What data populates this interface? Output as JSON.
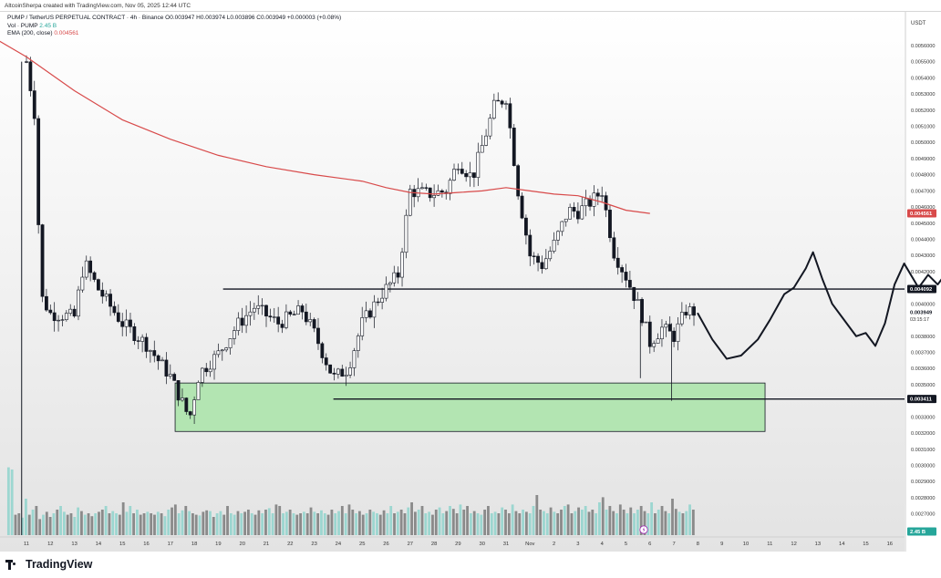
{
  "header": {
    "caption": "AltcoinSherpa created with TradingView.com, Nov 05, 2025 12:44 UTC"
  },
  "legend": {
    "symbol_line": "PUMP / TetherUS PERPETUAL CONTRACT · 4h · Binance",
    "ohlc": "O0.003947 H0.003974 L0.003896 C0.003949 +0.000003 (+0.08%)",
    "vol_label": "Vol · PUMP",
    "vol_value": "2.45 B",
    "ema_label": "EMA (200, close)",
    "ema_value": "0.004561"
  },
  "brand": {
    "name": "TradingView"
  },
  "colors": {
    "up": "#26a69a",
    "down": "#ef5350",
    "ema": "#d84a4a",
    "zone": "#a5e3a4",
    "candle": "#131722"
  },
  "chart_data": {
    "type": "candlestick",
    "currency": "USDT",
    "x_ticks": [
      "11",
      "12",
      "13",
      "14",
      "15",
      "16",
      "17",
      "18",
      "19",
      "20",
      "21",
      "22",
      "23",
      "24",
      "25",
      "26",
      "27",
      "28",
      "29",
      "30",
      "31",
      "Nov",
      "2",
      "3",
      "4",
      "5",
      "6",
      "7",
      "8",
      "9",
      "10",
      "11",
      "12",
      "13",
      "14",
      "15",
      "16"
    ],
    "y_ticks": [
      "0.0056000",
      "0.0055000",
      "0.0054000",
      "0.0053000",
      "0.0052000",
      "0.0051000",
      "0.0050000",
      "0.0049000",
      "0.0048000",
      "0.0047000",
      "0.0046000",
      "0.0045000",
      "0.0044000",
      "0.0043000",
      "0.0042000",
      "0.0041000",
      "0.0040000",
      "0.0039000",
      "0.0038000",
      "0.0037000",
      "0.0036000",
      "0.0035000",
      "0.0034000",
      "0.0033000",
      "0.0032000",
      "0.0031000",
      "0.0030000",
      "0.0029000",
      "0.0028000",
      "0.0027000"
    ],
    "ylim": [
      0.00263,
      0.00569
    ],
    "price_labels": [
      {
        "value": "0.004561",
        "kind": "ema"
      },
      {
        "value": "0.004092",
        "kind": "level"
      },
      {
        "value": "0.003949",
        "kind": "last",
        "countdown": "03:15:17"
      },
      {
        "value": "0.003411",
        "kind": "level"
      },
      {
        "value": "2.45 B",
        "kind": "volume"
      }
    ],
    "horizontal_levels": [
      {
        "price": 0.004092,
        "from_day": 8.2
      },
      {
        "price": 0.003411,
        "from_day": 12.8
      }
    ],
    "demand_zone": {
      "price_low": 0.00321,
      "price_high": 0.00351,
      "from_day": 6.2,
      "to_day": 30.8
    },
    "ema200": [
      [
        -1.5,
        0.00566
      ],
      [
        0,
        0.00553
      ],
      [
        2,
        0.00532
      ],
      [
        4,
        0.00514
      ],
      [
        6,
        0.00502
      ],
      [
        8,
        0.00492
      ],
      [
        10,
        0.00485
      ],
      [
        12,
        0.0048
      ],
      [
        14,
        0.00476
      ],
      [
        15,
        0.00472
      ],
      [
        16,
        0.00469
      ],
      [
        17,
        0.00468
      ],
      [
        18,
        0.00469
      ],
      [
        19,
        0.0047
      ],
      [
        20,
        0.00472
      ],
      [
        21,
        0.0047
      ],
      [
        22,
        0.00468
      ],
      [
        23,
        0.00467
      ],
      [
        24,
        0.00463
      ],
      [
        25,
        0.00458
      ],
      [
        26,
        0.00456
      ]
    ],
    "anchors_close": [
      [
        0,
        0.0055
      ],
      [
        0.35,
        0.00517
      ],
      [
        0.6,
        0.00405
      ],
      [
        1,
        0.00394
      ],
      [
        2,
        0.00392
      ],
      [
        2.4,
        0.00426
      ],
      [
        3,
        0.00409
      ],
      [
        4,
        0.00388
      ],
      [
        5,
        0.00375
      ],
      [
        6,
        0.00355
      ],
      [
        6.8,
        0.00329
      ],
      [
        7.2,
        0.00357
      ],
      [
        8,
        0.00369
      ],
      [
        8.8,
        0.00387
      ],
      [
        9.5,
        0.00398
      ],
      [
        10.5,
        0.00388
      ],
      [
        11.5,
        0.00396
      ],
      [
        12,
        0.00382
      ],
      [
        12.8,
        0.00354
      ],
      [
        13.4,
        0.0036
      ],
      [
        14,
        0.00388
      ],
      [
        14.8,
        0.00406
      ],
      [
        15.5,
        0.00418
      ],
      [
        16,
        0.0047
      ],
      [
        16.8,
        0.00468
      ],
      [
        17.5,
        0.0047
      ],
      [
        18,
        0.00488
      ],
      [
        18.6,
        0.00478
      ],
      [
        19.5,
        0.00522
      ],
      [
        20,
        0.00528
      ],
      [
        20.5,
        0.0047
      ],
      [
        21,
        0.0043
      ],
      [
        21.5,
        0.00424
      ],
      [
        22,
        0.00437
      ],
      [
        22.6,
        0.00458
      ],
      [
        23,
        0.00457
      ],
      [
        23.6,
        0.00464
      ],
      [
        24,
        0.0047
      ],
      [
        24.5,
        0.00432
      ],
      [
        25,
        0.00417
      ],
      [
        25.6,
        0.00396
      ],
      [
        26,
        0.00376
      ],
      [
        26.5,
        0.00385
      ],
      [
        27,
        0.0038
      ],
      [
        27.5,
        0.00396
      ],
      [
        27.9,
        0.00395
      ]
    ],
    "volume_bars": [
      0.93,
      0.9,
      0.28,
      0.3,
      0.24,
      0.5,
      0.28,
      0.35,
      0.4,
      0.22,
      0.28,
      0.32,
      0.25,
      0.3,
      0.35,
      0.4,
      0.32,
      0.28,
      0.3,
      0.25,
      0.38,
      0.33,
      0.28,
      0.3,
      0.26,
      0.3,
      0.32,
      0.35,
      0.4,
      0.3,
      0.33,
      0.3,
      0.28,
      0.45,
      0.32,
      0.4,
      0.3,
      0.35,
      0.28,
      0.3,
      0.32,
      0.3,
      0.28,
      0.32,
      0.3,
      0.26,
      0.35,
      0.38,
      0.42,
      0.3,
      0.34,
      0.4,
      0.33,
      0.3,
      0.28,
      0.27,
      0.32,
      0.34,
      0.33,
      0.25,
      0.3,
      0.33,
      0.28,
      0.4,
      0.3,
      0.28,
      0.33,
      0.3,
      0.32,
      0.35,
      0.3,
      0.28,
      0.34,
      0.3,
      0.35,
      0.37,
      0.3,
      0.42,
      0.4,
      0.3,
      0.32,
      0.35,
      0.3,
      0.28,
      0.3,
      0.32,
      0.3,
      0.38,
      0.32,
      0.3,
      0.34,
      0.3,
      0.28,
      0.35,
      0.3,
      0.33,
      0.4,
      0.3,
      0.42,
      0.35,
      0.3,
      0.33,
      0.28,
      0.3,
      0.35,
      0.32,
      0.3,
      0.28,
      0.34,
      0.3,
      0.4,
      0.3,
      0.32,
      0.35,
      0.3,
      0.38,
      0.45,
      0.32,
      0.35,
      0.4,
      0.3,
      0.32,
      0.28,
      0.35,
      0.38,
      0.3,
      0.33,
      0.4,
      0.36,
      0.3,
      0.42,
      0.35,
      0.4,
      0.3,
      0.33,
      0.3,
      0.28,
      0.35,
      0.4,
      0.3,
      0.32,
      0.3,
      0.38,
      0.35,
      0.3,
      0.42,
      0.33,
      0.3,
      0.35,
      0.32,
      0.3,
      0.4,
      0.55,
      0.35,
      0.33,
      0.3,
      0.38,
      0.32,
      0.3,
      0.35,
      0.4,
      0.42,
      0.3,
      0.33,
      0.38,
      0.35,
      0.4,
      0.32,
      0.35,
      0.3,
      0.45,
      0.52,
      0.35,
      0.4,
      0.33,
      0.3,
      0.42,
      0.35,
      0.3,
      0.38,
      0.3,
      0.35,
      0.4,
      0.33,
      0.3,
      0.45,
      0.3,
      0.35,
      0.4,
      0.33,
      0.3,
      0.5,
      0.36,
      0.32,
      0.3,
      0.33,
      0.42,
      0.35
    ],
    "projection_path": [
      [
        28,
        0.00394
      ],
      [
        28.6,
        0.00378
      ],
      [
        29.2,
        0.00366
      ],
      [
        29.8,
        0.00368
      ],
      [
        30.5,
        0.00378
      ],
      [
        31,
        0.0039
      ],
      [
        31.6,
        0.00406
      ],
      [
        32,
        0.0041
      ],
      [
        32.5,
        0.00422
      ],
      [
        32.8,
        0.00432
      ],
      [
        33.2,
        0.00415
      ],
      [
        33.6,
        0.004
      ],
      [
        34,
        0.00392
      ],
      [
        34.6,
        0.0038
      ],
      [
        35,
        0.00382
      ],
      [
        35.4,
        0.00374
      ],
      [
        35.8,
        0.00388
      ],
      [
        36.2,
        0.00412
      ],
      [
        36.6,
        0.00425
      ],
      [
        37.2,
        0.0041
      ],
      [
        37.6,
        0.00418
      ],
      [
        38,
        0.00412
      ],
      [
        38.4,
        0.0042
      ],
      [
        38.8,
        0.0041
      ],
      [
        39.2,
        0.00425
      ],
      [
        39.6,
        0.00432
      ],
      [
        40,
        0.00445
      ],
      [
        40.4,
        0.0046
      ],
      [
        40.8,
        0.0047
      ],
      [
        41.2,
        0.00458
      ],
      [
        41.6,
        0.00482
      ],
      [
        42,
        0.00498
      ],
      [
        42.4,
        0.00522
      ],
      [
        42.7,
        0.00532
      ]
    ]
  }
}
